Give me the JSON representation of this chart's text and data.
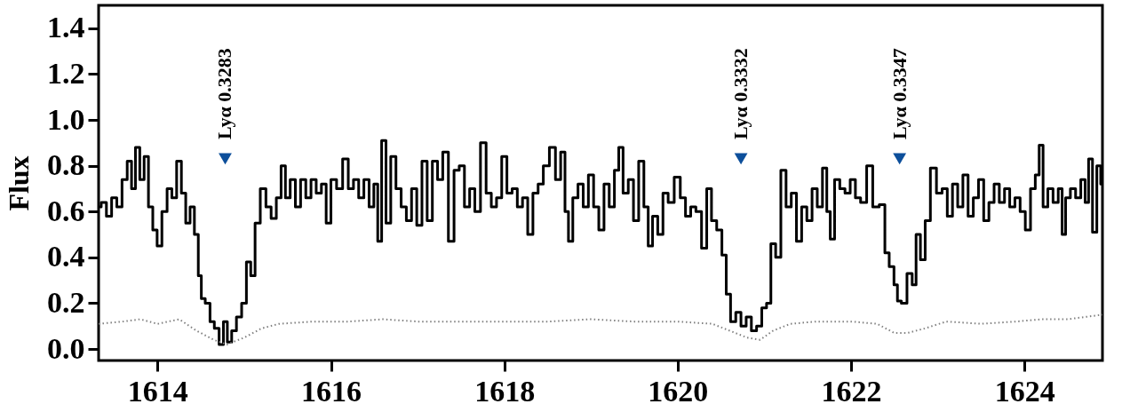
{
  "chart_data": {
    "type": "step",
    "ylabel": "Flux",
    "xlim": [
      1613.32,
      1624.9
    ],
    "xticks": [
      1614,
      1616,
      1618,
      1620,
      1622,
      1624
    ],
    "ylim": [
      -0.05,
      1.5
    ],
    "yticks": [
      {
        "value": 0,
        "label": "0.0"
      },
      0.2,
      0.4,
      0.6,
      0.8,
      {
        "value": 1,
        "label": "1.0"
      },
      1.2,
      1.4
    ],
    "grid": false,
    "series": [
      {
        "color": "#000000",
        "line_style": "solid",
        "x": [
          1613.32,
          1613.38,
          1613.44,
          1613.5,
          1613.56,
          1613.62,
          1613.68,
          1613.72,
          1613.77,
          1613.82,
          1613.87,
          1613.92,
          1613.97,
          1614.02,
          1614.08,
          1614.14,
          1614.19,
          1614.25,
          1614.3,
          1614.35,
          1614.4,
          1614.45,
          1614.49,
          1614.52,
          1614.58,
          1614.63,
          1614.68,
          1614.74,
          1614.78,
          1614.83,
          1614.88,
          1614.94,
          1615.0,
          1615.05,
          1615.1,
          1615.15,
          1615.22,
          1615.28,
          1615.34,
          1615.4,
          1615.45,
          1615.5,
          1615.56,
          1615.62,
          1615.68,
          1615.74,
          1615.8,
          1615.86,
          1615.92,
          1615.97,
          1616.03,
          1616.1,
          1616.17,
          1616.23,
          1616.29,
          1616.35,
          1616.41,
          1616.47,
          1616.52,
          1616.56,
          1616.61,
          1616.66,
          1616.72,
          1616.78,
          1616.84,
          1616.9,
          1616.96,
          1617.02,
          1617.08,
          1617.14,
          1617.2,
          1617.26,
          1617.32,
          1617.39,
          1617.45,
          1617.51,
          1617.57,
          1617.63,
          1617.69,
          1617.76,
          1617.82,
          1617.88,
          1617.94,
          1618.0,
          1618.06,
          1618.12,
          1618.18,
          1618.24,
          1618.3,
          1618.36,
          1618.42,
          1618.48,
          1618.56,
          1618.62,
          1618.68,
          1618.72,
          1618.76,
          1618.82,
          1618.88,
          1618.94,
          1619.0,
          1619.06,
          1619.12,
          1619.18,
          1619.24,
          1619.3,
          1619.34,
          1619.4,
          1619.46,
          1619.52,
          1619.58,
          1619.64,
          1619.68,
          1619.74,
          1619.8,
          1619.86,
          1619.92,
          1620.0,
          1620.06,
          1620.12,
          1620.18,
          1620.24,
          1620.31,
          1620.36,
          1620.42,
          1620.48,
          1620.54,
          1620.58,
          1620.64,
          1620.7,
          1620.76,
          1620.82,
          1620.88,
          1620.94,
          1621.0,
          1621.05,
          1621.1,
          1621.16,
          1621.22,
          1621.28,
          1621.34,
          1621.4,
          1621.46,
          1621.52,
          1621.58,
          1621.64,
          1621.7,
          1621.74,
          1621.78,
          1621.84,
          1621.9,
          1621.96,
          1622.02,
          1622.08,
          1622.14,
          1622.22,
          1622.28,
          1622.37,
          1622.41,
          1622.47,
          1622.52,
          1622.55,
          1622.61,
          1622.68,
          1622.73,
          1622.77,
          1622.83,
          1622.88,
          1622.95,
          1623.02,
          1623.08,
          1623.14,
          1623.2,
          1623.26,
          1623.32,
          1623.38,
          1623.44,
          1623.5,
          1623.56,
          1623.62,
          1623.68,
          1623.74,
          1623.8,
          1623.86,
          1623.92,
          1623.98,
          1624.04,
          1624.1,
          1624.15,
          1624.19,
          1624.24,
          1624.3,
          1624.36,
          1624.42,
          1624.45,
          1624.5,
          1624.56,
          1624.62,
          1624.68,
          1624.72,
          1624.76,
          1624.81,
          1624.86,
          1624.9
        ],
        "values": [
          0.62,
          0.64,
          0.58,
          0.66,
          0.62,
          0.74,
          0.82,
          0.7,
          0.88,
          0.74,
          0.84,
          0.62,
          0.52,
          0.45,
          0.6,
          0.7,
          0.66,
          0.82,
          0.68,
          0.55,
          0.62,
          0.5,
          0.32,
          0.22,
          0.2,
          0.12,
          0.09,
          0.02,
          0.12,
          0.03,
          0.08,
          0.14,
          0.2,
          0.38,
          0.32,
          0.55,
          0.7,
          0.62,
          0.57,
          0.66,
          0.8,
          0.66,
          0.74,
          0.62,
          0.74,
          0.66,
          0.74,
          0.68,
          0.72,
          0.55,
          0.74,
          0.7,
          0.83,
          0.7,
          0.74,
          0.66,
          0.74,
          0.62,
          0.72,
          0.47,
          0.91,
          0.55,
          0.84,
          0.7,
          0.62,
          0.56,
          0.7,
          0.54,
          0.82,
          0.56,
          0.82,
          0.74,
          0.86,
          0.47,
          0.78,
          0.8,
          0.62,
          0.7,
          0.6,
          0.9,
          0.68,
          0.62,
          0.66,
          0.84,
          0.68,
          0.7,
          0.62,
          0.66,
          0.5,
          0.68,
          0.72,
          0.8,
          0.88,
          0.74,
          0.86,
          0.6,
          0.47,
          0.66,
          0.72,
          0.62,
          0.76,
          0.62,
          0.52,
          0.72,
          0.62,
          0.78,
          0.88,
          0.68,
          0.74,
          0.56,
          0.82,
          0.62,
          0.45,
          0.58,
          0.5,
          0.68,
          0.64,
          0.75,
          0.66,
          0.58,
          0.62,
          0.6,
          0.44,
          0.7,
          0.56,
          0.52,
          0.41,
          0.24,
          0.12,
          0.16,
          0.1,
          0.14,
          0.08,
          0.1,
          0.18,
          0.2,
          0.46,
          0.4,
          0.78,
          0.62,
          0.68,
          0.47,
          0.62,
          0.56,
          0.7,
          0.62,
          0.79,
          0.6,
          0.48,
          0.74,
          0.7,
          0.68,
          0.74,
          0.66,
          0.64,
          0.8,
          0.62,
          0.63,
          0.42,
          0.36,
          0.28,
          0.21,
          0.2,
          0.33,
          0.28,
          0.5,
          0.39,
          0.56,
          0.79,
          0.68,
          0.7,
          0.58,
          0.72,
          0.62,
          0.76,
          0.58,
          0.66,
          0.74,
          0.56,
          0.64,
          0.72,
          0.64,
          0.7,
          0.62,
          0.66,
          0.6,
          0.52,
          0.7,
          0.76,
          0.89,
          0.62,
          0.7,
          0.64,
          0.7,
          0.5,
          0.66,
          0.7,
          0.66,
          0.74,
          0.64,
          0.83,
          0.51,
          0.8,
          0.72
        ]
      },
      {
        "type": "line",
        "color": "#808080",
        "line_style": "dotted",
        "x": [
          1613.32,
          1613.6,
          1613.8,
          1614.0,
          1614.25,
          1614.45,
          1614.65,
          1614.8,
          1615.0,
          1615.2,
          1615.4,
          1615.8,
          1616.2,
          1616.6,
          1617.0,
          1617.5,
          1618.0,
          1618.5,
          1619.0,
          1619.5,
          1620.0,
          1620.4,
          1620.6,
          1620.8,
          1620.95,
          1621.1,
          1621.3,
          1621.6,
          1622.0,
          1622.3,
          1622.5,
          1622.65,
          1622.85,
          1623.1,
          1623.5,
          1623.9,
          1624.2,
          1624.5,
          1624.9
        ],
        "values": [
          0.11,
          0.12,
          0.13,
          0.11,
          0.13,
          0.08,
          0.04,
          0.02,
          0.05,
          0.09,
          0.11,
          0.12,
          0.12,
          0.13,
          0.12,
          0.12,
          0.12,
          0.12,
          0.13,
          0.12,
          0.12,
          0.11,
          0.08,
          0.05,
          0.04,
          0.08,
          0.11,
          0.12,
          0.12,
          0.11,
          0.07,
          0.07,
          0.09,
          0.12,
          0.11,
          0.12,
          0.13,
          0.13,
          0.15
        ]
      },
      {
        "type": "scatter",
        "color": "#0d4f9b",
        "marker": "triangle",
        "x": [
          1614.78,
          1620.73,
          1622.56
        ],
        "values": [
          0.83,
          0.83,
          0.83
        ]
      }
    ],
    "annotations": [
      {
        "text": "Lyα 0.3283",
        "x": 1614.78,
        "y": 0.83
      },
      {
        "text": "Lyα 0.3332",
        "x": 1620.73,
        "y": 0.83
      },
      {
        "text": "Lyα 0.3347",
        "x": 1622.56,
        "y": 0.83
      }
    ]
  }
}
